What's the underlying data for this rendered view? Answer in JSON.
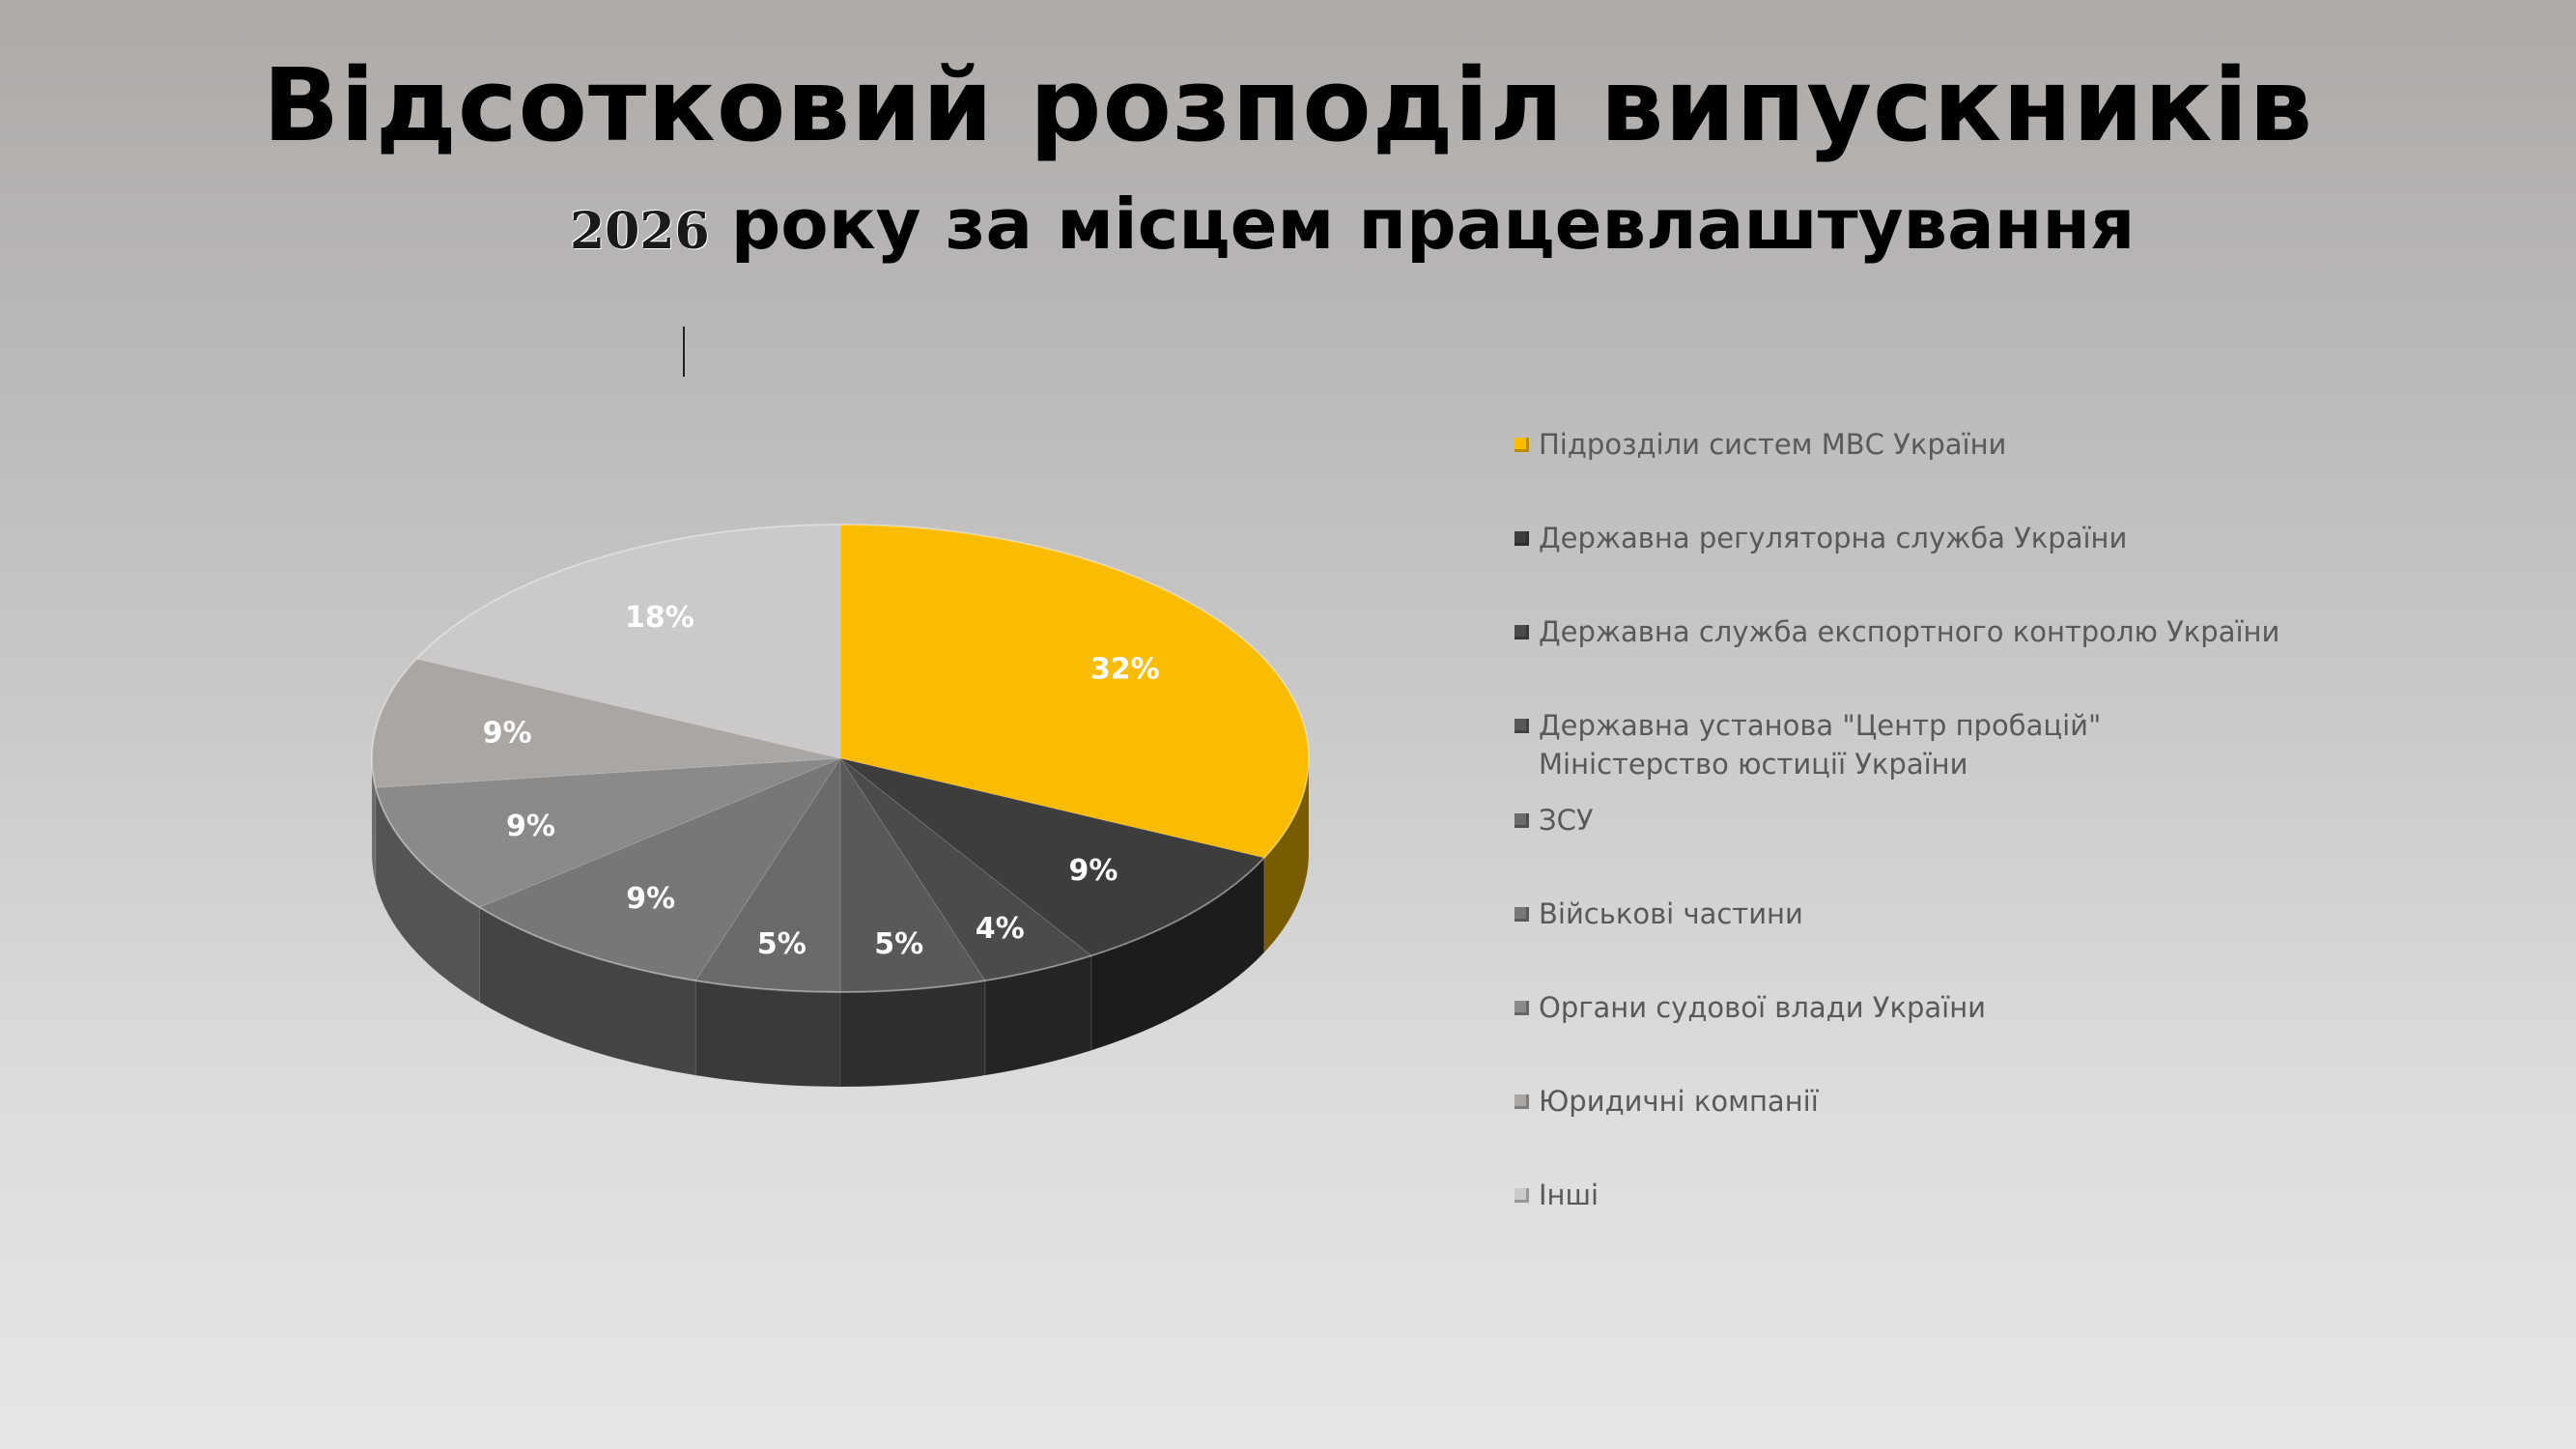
{
  "header": {
    "title": "Відсотковий розподіл випускників",
    "subtitle_year": "2026",
    "subtitle_text": "року за місцем працевлаштування"
  },
  "chart_data": {
    "type": "pie",
    "title": "Відсотковий розподіл випускників 2026 року за місцем працевлаштування",
    "legend_position": "right",
    "slices": [
      {
        "name": "Підрозділи систем МВС України",
        "value": 32,
        "label": "32%",
        "color": "#f9bc00",
        "side": "#7a5c00"
      },
      {
        "name": "Державна регуляторна служба України",
        "value": 9,
        "label": "9%",
        "color": "#3d3d3d",
        "side": "#1c1c1c"
      },
      {
        "name": "Державна служба експортного контролю України",
        "value": 4,
        "label": "4%",
        "color": "#4b4b4b",
        "side": "#242424"
      },
      {
        "name": "Державна установа \"Центр пробацій\" Міністерство юстиції України",
        "value": 5,
        "label": "5%",
        "color": "#595959",
        "side": "#2e2e2e"
      },
      {
        "name": "ЗСУ",
        "value": 5,
        "label": "5%",
        "color": "#6a6a6a",
        "side": "#3a3a3a"
      },
      {
        "name": "Військові частини",
        "value": 9,
        "label": "9%",
        "color": "#777777",
        "side": "#444444"
      },
      {
        "name": "Органи судової  влади України",
        "value": 9,
        "label": "9%",
        "color": "#8a8a8a",
        "side": "#545454"
      },
      {
        "name": "Юридичні компанії",
        "value": 9,
        "label": "9%",
        "color": "#aaa6a4",
        "side": "#6e6a68"
      },
      {
        "name": "Інші",
        "value": 18,
        "label": "18%",
        "color": "#cbc9c9",
        "side": "#8e8c8c"
      }
    ]
  }
}
